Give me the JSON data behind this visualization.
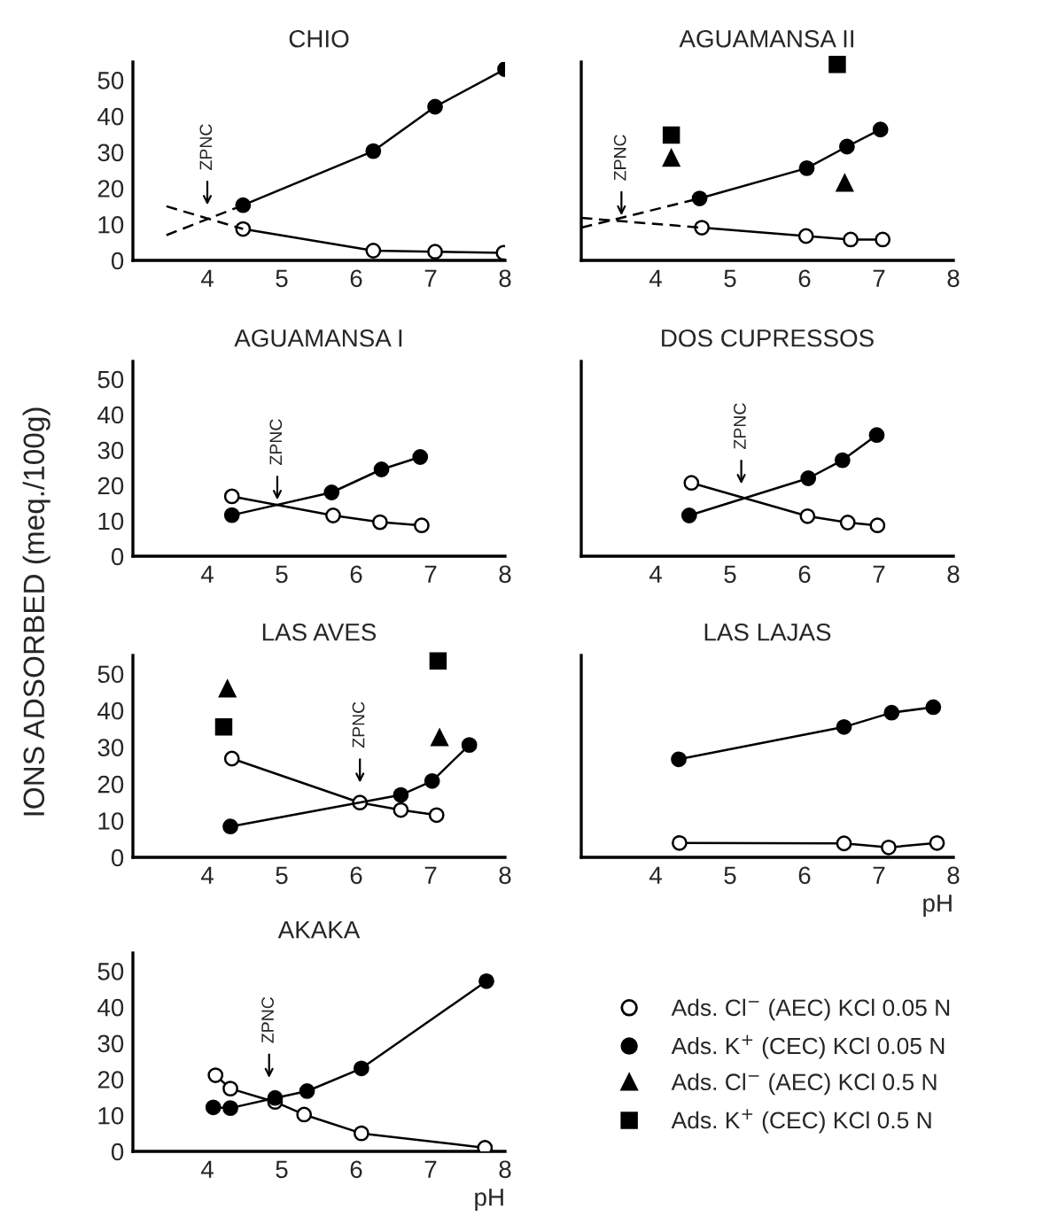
{
  "chart_data": [
    {
      "type": "line",
      "title": "CHIO",
      "xlim": [
        3,
        8
      ],
      "xticks": [
        4,
        5,
        6,
        7,
        8
      ],
      "ylim": [
        0,
        55
      ],
      "yticks": [
        0,
        10,
        20,
        30,
        40,
        50
      ],
      "annotations": [
        {
          "text": "ZPNC",
          "x": 4.0,
          "y": 14
        }
      ],
      "series": [
        {
          "type": "line",
          "marker": "circle",
          "color": "#ffffff",
          "x": [
            4.48,
            6.23,
            7.06,
            7.98
          ],
          "values": [
            8.7,
            2.7,
            2.4,
            2.1
          ]
        },
        {
          "type": "line",
          "marker": "circle",
          "color": "#000000",
          "x": [
            4.48,
            6.23,
            7.06,
            8.0
          ],
          "values": [
            15.3,
            30.3,
            42.6,
            53
          ]
        },
        {
          "type": "line",
          "marker": "none",
          "line_style": "dashed",
          "color": "#000000",
          "x": [
            3.45,
            4.48
          ],
          "values": [
            15,
            8.7
          ]
        },
        {
          "type": "line",
          "marker": "none",
          "line_style": "dashed",
          "color": "#000000",
          "x": [
            3.45,
            4.48
          ],
          "values": [
            7,
            15.3
          ]
        }
      ]
    },
    {
      "type": "line",
      "title": "AGUAMANSA II",
      "xlim": [
        3,
        8
      ],
      "xticks": [
        4,
        5,
        6,
        7,
        8
      ],
      "ylim": [
        0,
        57
      ],
      "yticks": [
        0,
        10,
        20,
        30,
        40,
        50
      ],
      "tick_labels": "x",
      "annotations": [
        {
          "text": "ZPNC",
          "x": 3.54,
          "y": 11.5
        }
      ],
      "series": [
        {
          "type": "line",
          "marker": "circle",
          "color": "#ffffff",
          "x": [
            4.62,
            6.02,
            6.62,
            7.05
          ],
          "values": [
            9.4,
            7.0,
            6.0,
            6.0
          ]
        },
        {
          "type": "line",
          "marker": "circle",
          "color": "#000000",
          "x": [
            4.59,
            6.03,
            6.57,
            7.02
          ],
          "values": [
            17.8,
            26.5,
            32.7,
            37.6
          ]
        },
        {
          "type": "scatter",
          "marker": "triangle",
          "color": "#000000",
          "x": [
            4.21,
            6.54
          ],
          "values": [
            29.4,
            22.2
          ]
        },
        {
          "type": "scatter",
          "marker": "square",
          "color": "#000000",
          "x": [
            4.21,
            6.44
          ],
          "values": [
            36,
            56.3
          ]
        },
        {
          "type": "line",
          "marker": "none",
          "line_style": "dashed",
          "color": "#000000",
          "x": [
            3.0,
            4.62
          ],
          "values": [
            12.2,
            9.4
          ]
        },
        {
          "type": "line",
          "marker": "none",
          "line_style": "dashed",
          "color": "#000000",
          "x": [
            3.0,
            4.59
          ],
          "values": [
            9.4,
            17.8
          ]
        }
      ]
    },
    {
      "type": "line",
      "title": "AGUAMANSA I",
      "xlim": [
        3,
        8
      ],
      "xticks": [
        4,
        5,
        6,
        7,
        8
      ],
      "ylim": [
        0,
        55
      ],
      "yticks": [
        0,
        10,
        20,
        30,
        40,
        50
      ],
      "annotations": [
        {
          "text": "ZPNC",
          "x": 4.94,
          "y": 14.5
        }
      ],
      "series": [
        {
          "type": "line",
          "marker": "circle",
          "color": "#ffffff",
          "x": [
            4.33,
            5.69,
            6.32,
            6.88
          ],
          "values": [
            16.9,
            11.5,
            9.6,
            8.7
          ]
        },
        {
          "type": "line",
          "marker": "circle",
          "color": "#000000",
          "x": [
            4.33,
            5.67,
            6.34,
            6.86
          ],
          "values": [
            11.6,
            18.0,
            24.5,
            28.0
          ]
        }
      ]
    },
    {
      "type": "line",
      "title": "DOS CUPRESSOS",
      "xlim": [
        3,
        8
      ],
      "xticks": [
        4,
        5,
        6,
        7,
        8
      ],
      "ylim": [
        0,
        55
      ],
      "yticks": [
        0,
        10,
        20,
        30,
        40,
        50
      ],
      "tick_labels": "x",
      "annotations": [
        {
          "text": "ZPNC",
          "x": 5.15,
          "y": 19
        }
      ],
      "series": [
        {
          "type": "line",
          "marker": "circle",
          "color": "#ffffff",
          "x": [
            4.48,
            6.04,
            6.58,
            6.98
          ],
          "values": [
            20.7,
            11.3,
            9.5,
            8.7
          ]
        },
        {
          "type": "line",
          "marker": "circle",
          "color": "#000000",
          "x": [
            4.45,
            6.05,
            6.51,
            6.97
          ],
          "values": [
            11.5,
            22.0,
            27.1,
            34.2
          ]
        }
      ]
    },
    {
      "type": "line",
      "title": "LAS AVES",
      "ylabel": "IONS ADSORBED (meq./100g)",
      "xlim": [
        3,
        8
      ],
      "xticks": [
        4,
        5,
        6,
        7,
        8
      ],
      "ylim": [
        0,
        55
      ],
      "yticks": [
        0,
        10,
        20,
        30,
        40,
        50
      ],
      "legend": "bottom right",
      "annotations": [
        {
          "text": "ZPNC",
          "x": 6.05,
          "y": 19
        }
      ],
      "series": [
        {
          "name": "Ads. Cl$^{−}$ (AEC) KCl 0.05 N",
          "type": "line",
          "marker": "circle",
          "color": "#ffffff",
          "x": [
            4.33,
            6.05,
            6.6,
            7.08
          ],
          "values": [
            26.9,
            14.9,
            12.9,
            11.5
          ]
        },
        {
          "name": "Ads. K$^{+}$ (CEC) KCl 0.05 N",
          "type": "line",
          "marker": "circle",
          "color": "#000000",
          "x": [
            4.31,
            6.6,
            7.02,
            7.52
          ],
          "values": [
            8.4,
            17.0,
            20.8,
            30.6
          ]
        },
        {
          "name": "Ads. Cl$^{−}$ (AEC) KCl 0.5 N",
          "type": "scatter",
          "marker": "triangle",
          "color": "#000000",
          "x": [
            4.27,
            7.12
          ],
          "values": [
            45.9,
            32.6
          ]
        },
        {
          "name": "Ads. K$^{+}$ (CEC) KCl 0.5 N",
          "type": "scatter",
          "marker": "square",
          "color": "#000000",
          "x": [
            4.22,
            7.1
          ],
          "values": [
            35.5,
            53.5
          ]
        }
      ]
    },
    {
      "type": "line",
      "title": "LAS LAJAS",
      "xlabel": "pH",
      "xlim": [
        3,
        8
      ],
      "xticks": [
        4,
        5,
        6,
        7,
        8
      ],
      "ylim": [
        0,
        55
      ],
      "yticks": [
        0,
        10,
        20,
        30,
        40,
        50
      ],
      "tick_labels": "x",
      "series": [
        {
          "type": "line",
          "marker": "circle",
          "color": "#ffffff",
          "x": [
            4.32,
            6.53,
            7.13,
            7.78
          ],
          "values": [
            3.9,
            3.8,
            2.7,
            3.9
          ]
        },
        {
          "type": "line",
          "marker": "circle",
          "color": "#000000",
          "x": [
            4.31,
            6.53,
            7.17,
            7.73
          ],
          "values": [
            26.7,
            35.5,
            39.4,
            40.9
          ]
        }
      ]
    },
    {
      "type": "line",
      "title": "AKAKA",
      "xlabel": "pH",
      "xlim": [
        3,
        8
      ],
      "xticks": [
        4,
        5,
        6,
        7,
        8
      ],
      "ylim": [
        0,
        55
      ],
      "yticks": [
        0,
        10,
        20,
        30,
        40,
        50
      ],
      "annotations": [
        {
          "text": "ZPNC",
          "x": 4.83,
          "y": 19
        }
      ],
      "series": [
        {
          "type": "line",
          "marker": "circle",
          "color": "#ffffff",
          "x": [
            4.11,
            4.31,
            4.91,
            5.3,
            6.07,
            7.73
          ],
          "values": [
            21.1,
            17.4,
            13.7,
            10.2,
            5.0,
            1
          ]
        },
        {
          "type": "line",
          "marker": "circle",
          "color": "#000000",
          "x": [
            4.08,
            4.31,
            4.91,
            5.34,
            6.07,
            7.75
          ],
          "values": [
            12.2,
            12.0,
            14.8,
            16.7,
            23.0,
            47.2
          ]
        }
      ]
    }
  ]
}
